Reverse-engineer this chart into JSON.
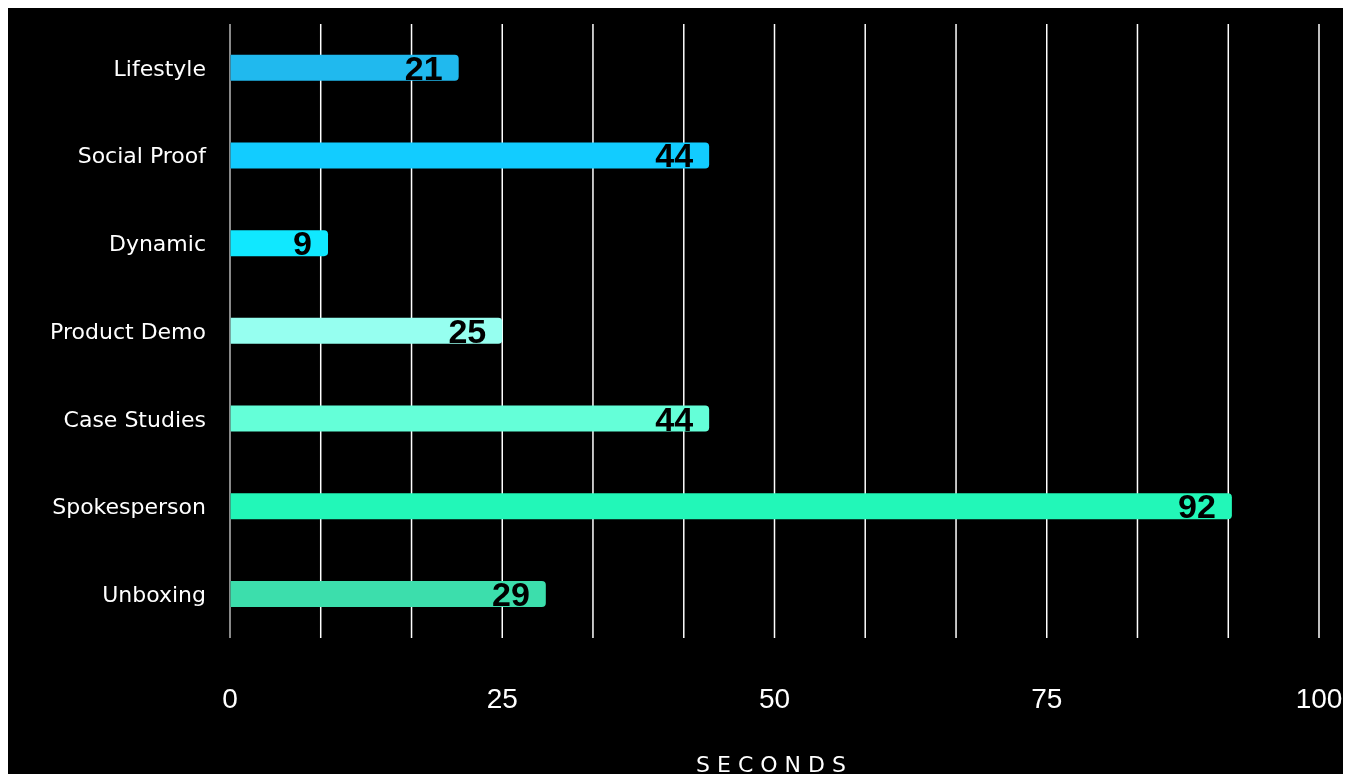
{
  "chart_data": {
    "type": "bar",
    "orientation": "horizontal",
    "xlabel": "SECONDS",
    "categories": [
      "Lifestyle",
      "Social Proof",
      "Dynamic",
      "Product Demo",
      "Case Studies",
      "Spokesperson",
      "Unboxing"
    ],
    "values": [
      21,
      44,
      9,
      25,
      44,
      92,
      29
    ],
    "colors": [
      "#20b9ee",
      "#12ccff",
      "#10e8ff",
      "#96fff0",
      "#64ffd8",
      "#22f7b8",
      "#3cdeac"
    ],
    "xlim": [
      0,
      100
    ],
    "xticks": [
      0,
      {
        "value": 8.33,
        "label": null
      },
      {
        "value": 16.67,
        "label": null
      },
      25,
      {
        "value": 33.33,
        "label": null
      },
      {
        "value": 41.67,
        "label": null
      },
      50,
      {
        "value": 58.33,
        "label": null
      },
      {
        "value": 66.67,
        "label": null
      },
      75,
      {
        "value": 83.33,
        "label": null
      },
      {
        "value": 91.67,
        "label": null
      },
      100
    ],
    "grid": "x",
    "data_labels": true
  }
}
